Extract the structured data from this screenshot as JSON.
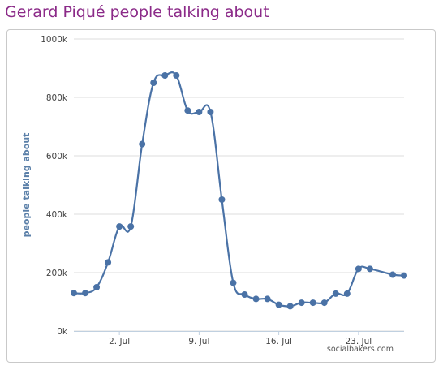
{
  "page": {
    "title": "Gerard Piqué people talking about",
    "credit": "socialbakers.com"
  },
  "colors": {
    "title": "#8b2a88",
    "line": "#4a72a6",
    "grid": "#dddddd",
    "axis_label": "#5a7fa8"
  },
  "chart_data": {
    "type": "line",
    "title": "Gerard Piqué people talking about",
    "ylabel": "people talking about",
    "xlabel": "",
    "ylim": [
      0,
      1000000
    ],
    "yticks": [
      {
        "value": 0,
        "label": "0k"
      },
      {
        "value": 200000,
        "label": "200k"
      },
      {
        "value": 400000,
        "label": "400k"
      },
      {
        "value": 600000,
        "label": "600k"
      },
      {
        "value": 800000,
        "label": "800k"
      },
      {
        "value": 1000000,
        "label": "1000k"
      }
    ],
    "xlim": [
      "2012-06-28",
      "2012-07-27"
    ],
    "xticks": [
      {
        "value": "2012-07-02",
        "label": "2. Jul"
      },
      {
        "value": "2012-07-09",
        "label": "9. Jul"
      },
      {
        "value": "2012-07-16",
        "label": "16. Jul"
      },
      {
        "value": "2012-07-23",
        "label": "23. Jul"
      }
    ],
    "grid": true,
    "legend": "none",
    "series": [
      {
        "points": [
          {
            "x": "2012-06-28",
            "y": 130000
          },
          {
            "x": "2012-06-29",
            "y": 130000
          },
          {
            "x": "2012-06-30",
            "y": 150000
          },
          {
            "x": "2012-07-01",
            "y": 235000
          },
          {
            "x": "2012-07-02",
            "y": 358000
          },
          {
            "x": "2012-07-03",
            "y": 358000
          },
          {
            "x": "2012-07-04",
            "y": 640000
          },
          {
            "x": "2012-07-05",
            "y": 850000
          },
          {
            "x": "2012-07-06",
            "y": 875000
          },
          {
            "x": "2012-07-07",
            "y": 875000
          },
          {
            "x": "2012-07-08",
            "y": 755000
          },
          {
            "x": "2012-07-09",
            "y": 750000
          },
          {
            "x": "2012-07-10",
            "y": 750000
          },
          {
            "x": "2012-07-11",
            "y": 450000
          },
          {
            "x": "2012-07-12",
            "y": 165000
          },
          {
            "x": "2012-07-13",
            "y": 125000
          },
          {
            "x": "2012-07-14",
            "y": 110000
          },
          {
            "x": "2012-07-15",
            "y": 110000
          },
          {
            "x": "2012-07-16",
            "y": 90000
          },
          {
            "x": "2012-07-17",
            "y": 85000
          },
          {
            "x": "2012-07-18",
            "y": 97000
          },
          {
            "x": "2012-07-19",
            "y": 97000
          },
          {
            "x": "2012-07-20",
            "y": 97000
          },
          {
            "x": "2012-07-21",
            "y": 128000
          },
          {
            "x": "2012-07-22",
            "y": 128000
          },
          {
            "x": "2012-07-23",
            "y": 213000
          },
          {
            "x": "2012-07-24",
            "y": 213000
          },
          {
            "x": "2012-07-26",
            "y": 193000
          },
          {
            "x": "2012-07-27",
            "y": 190000
          }
        ]
      }
    ]
  }
}
